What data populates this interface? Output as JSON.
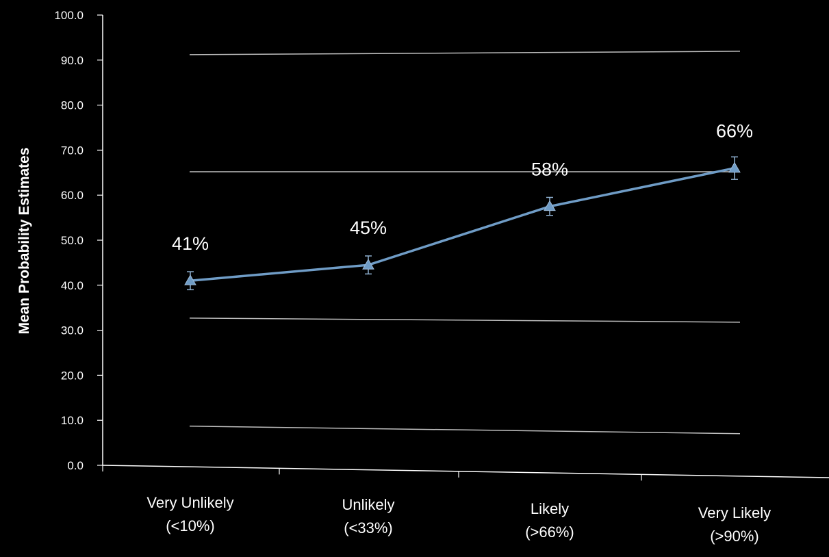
{
  "chart_data": {
    "type": "line",
    "ylabel": "Mean Probability Estimates",
    "xlabel": "",
    "ylim": [
      0,
      100
    ],
    "y_ticks": [
      "0.0",
      "10.0",
      "20.0",
      "30.0",
      "40.0",
      "50.0",
      "60.0",
      "70.0",
      "80.0",
      "90.0",
      "100.0"
    ],
    "categories": [
      [
        "Very Unlikely",
        "(<10%)"
      ],
      [
        "Unlikely",
        "(<33%)"
      ],
      [
        "Likely",
        "(>66%)"
      ],
      [
        "Very Likely",
        "(>90%)"
      ]
    ],
    "series": [
      {
        "values": [
          41,
          44.5,
          57.5,
          66
        ],
        "error": [
          2,
          2,
          2,
          2.5
        ],
        "data_labels": [
          "41%",
          "45%",
          "58%",
          "66%"
        ],
        "color": "#6f9cc6",
        "marker": "triangle"
      }
    ],
    "reference_lines": [
      91.5,
      65.5,
      33,
      9
    ],
    "grid": false,
    "legend": "none",
    "colors": {
      "background": "#000000",
      "axis": "#ffffff",
      "reference_line": "#bfbfbf"
    }
  }
}
